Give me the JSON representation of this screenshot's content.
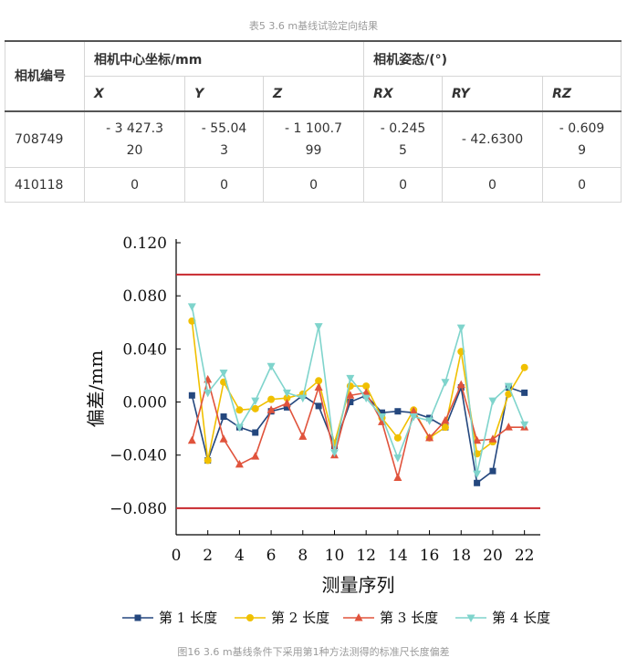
{
  "table": {
    "caption": "表5   3.6 m基线试验定向结果",
    "header": {
      "camera_id": "相机编号",
      "center_group": "相机中心坐标/mm",
      "attitude_group": "相机姿态/(°)",
      "cols": [
        "X",
        "Y",
        "Z",
        "RX",
        "RY",
        "RZ"
      ]
    },
    "rows": [
      {
        "id": "708749",
        "values": [
          "- 3 427.320",
          "- 55.043",
          "- 1 100.799",
          "- 0.2455",
          "- 42.6300",
          "- 0.6099"
        ]
      },
      {
        "id": "410118",
        "values": [
          "0",
          "0",
          "0",
          "0",
          "0",
          "0"
        ]
      }
    ]
  },
  "figure": {
    "caption": "图16   3.6 m基线条件下采用第1种方法测得的标准尺长度偏差"
  },
  "chart_data": {
    "type": "line",
    "title": "",
    "xlabel": "测量序列",
    "ylabel": "偏差/mm",
    "xlim": [
      0,
      23
    ],
    "ylim": [
      -0.1,
      0.12
    ],
    "xticks": [
      0,
      2,
      4,
      6,
      8,
      10,
      12,
      14,
      16,
      18,
      20,
      22
    ],
    "yticks": [
      0.12,
      0.08,
      0.04,
      0.0,
      -0.04,
      -0.08
    ],
    "ytick_labels": [
      "0.120",
      "0.080",
      "0.040",
      "0.000",
      "−0.040",
      "−0.080"
    ],
    "x": [
      1,
      2,
      3,
      4,
      5,
      6,
      7,
      8,
      9,
      10,
      11,
      12,
      13,
      14,
      15,
      16,
      17,
      18,
      19,
      20,
      21,
      22
    ],
    "limits": [
      {
        "y": 0.096,
        "color": "#c8282e"
      },
      {
        "y": -0.08,
        "color": "#c8282e"
      }
    ],
    "series": [
      {
        "name": "第 1 长度",
        "color": "#24477e",
        "marker": "square",
        "values": [
          0.005,
          -0.044,
          -0.011,
          -0.019,
          -0.023,
          -0.007,
          -0.004,
          0.005,
          -0.003,
          -0.033,
          0.0,
          0.005,
          -0.008,
          -0.007,
          -0.008,
          -0.012,
          -0.019,
          0.011,
          -0.061,
          -0.052,
          0.011,
          0.007
        ]
      },
      {
        "name": "第 2 长度",
        "color": "#f0c000",
        "marker": "circle",
        "values": [
          0.061,
          -0.044,
          0.015,
          -0.006,
          -0.005,
          0.002,
          0.003,
          0.006,
          0.016,
          -0.031,
          0.012,
          0.012,
          -0.012,
          -0.027,
          -0.006,
          -0.027,
          -0.019,
          0.038,
          -0.039,
          -0.03,
          0.006,
          0.026
        ]
      },
      {
        "name": "第 3 长度",
        "color": "#e0533c",
        "marker": "triangle",
        "values": [
          -0.029,
          0.017,
          -0.028,
          -0.047,
          -0.041,
          -0.006,
          -0.001,
          -0.026,
          0.011,
          -0.04,
          0.005,
          0.007,
          -0.015,
          -0.057,
          -0.007,
          -0.027,
          -0.014,
          0.013,
          -0.029,
          -0.028,
          -0.019,
          -0.019
        ]
      },
      {
        "name": "第 4 长度",
        "color": "#7fd4cc",
        "marker": "tri-down",
        "values": [
          0.072,
          0.007,
          0.022,
          -0.019,
          0.001,
          0.027,
          0.007,
          0.003,
          0.057,
          -0.038,
          0.018,
          0.003,
          -0.011,
          -0.042,
          -0.011,
          -0.014,
          0.015,
          0.056,
          -0.054,
          0.001,
          0.012,
          -0.017
        ]
      }
    ]
  }
}
